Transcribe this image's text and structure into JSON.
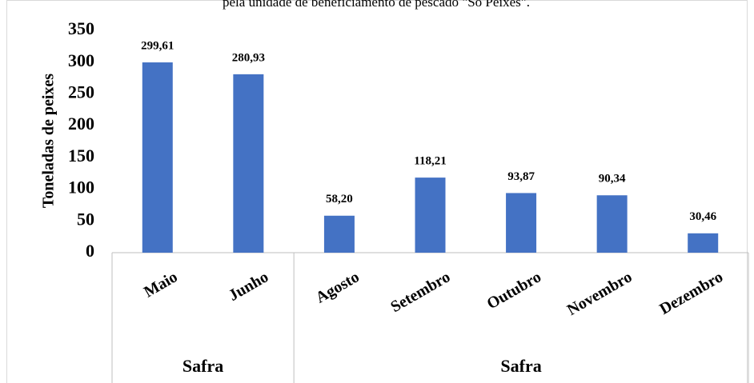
{
  "chart_data": {
    "type": "bar",
    "title": "pela unidade de beneficiamento de pescado \"Só Peixes\".",
    "ylabel": "Toneladas de peixes",
    "groups": [
      {
        "label": "Safra",
        "categories": [
          "Maio",
          "Junho"
        ],
        "values": [
          299.61,
          280.93
        ],
        "value_labels": [
          "299,61",
          "280,93"
        ]
      },
      {
        "label": "Safra",
        "categories": [
          "Agosto",
          "Setembro",
          "Outubro",
          "Novembro",
          "Dezembro"
        ],
        "values": [
          58.2,
          118.21,
          93.87,
          90.34,
          30.46
        ],
        "value_labels": [
          "58,20",
          "118,21",
          "93,87",
          "90,34",
          "30,46"
        ]
      }
    ],
    "color": "#4472c4",
    "ylim": [
      0,
      350
    ],
    "yticks": [
      0,
      50,
      100,
      150,
      200,
      250,
      300,
      350
    ],
    "grid": false
  }
}
